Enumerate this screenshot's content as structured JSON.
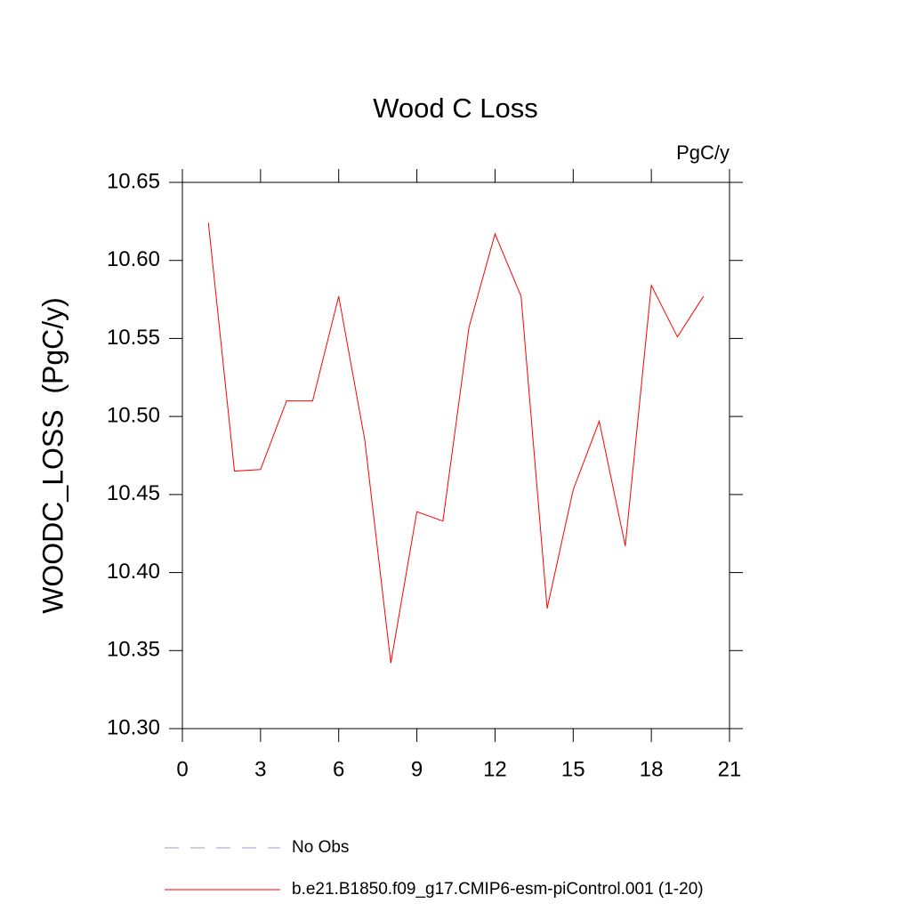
{
  "chart_data": {
    "type": "line",
    "title": "Wood C Loss",
    "units": "PgC/y",
    "y_label": "WOODC_LOSS  (PgC/y)",
    "x": [
      1,
      2,
      3,
      4,
      5,
      6,
      7,
      8,
      9,
      10,
      11,
      12,
      13,
      14,
      15,
      16,
      17,
      18,
      19,
      20
    ],
    "series": [
      {
        "name": "b.e21.B1850.f09_g17.CMIP6-esm-piControl.001 (1-20)",
        "color": "#ff0000",
        "values": [
          10.624,
          10.465,
          10.466,
          10.51,
          10.51,
          10.577,
          10.485,
          10.342,
          10.439,
          10.433,
          10.557,
          10.617,
          10.577,
          10.377,
          10.453,
          10.497,
          10.417,
          10.584,
          10.551,
          10.577
        ]
      }
    ],
    "reference": {
      "name": "No Obs",
      "color": "#9a9ad8",
      "style": "dashed"
    },
    "xlim": [
      0,
      21
    ],
    "xticks": [
      0,
      3,
      6,
      9,
      12,
      15,
      18,
      21
    ],
    "ylim": [
      10.3,
      10.65
    ],
    "yticks": [
      {
        "value": 10.3,
        "label": "10.30"
      },
      10.35,
      {
        "value": 10.4,
        "label": "10.40"
      },
      10.45,
      {
        "value": 10.5,
        "label": "10.50"
      },
      10.55,
      {
        "value": 10.6,
        "label": "10.60"
      },
      10.65
    ],
    "grid": false
  }
}
